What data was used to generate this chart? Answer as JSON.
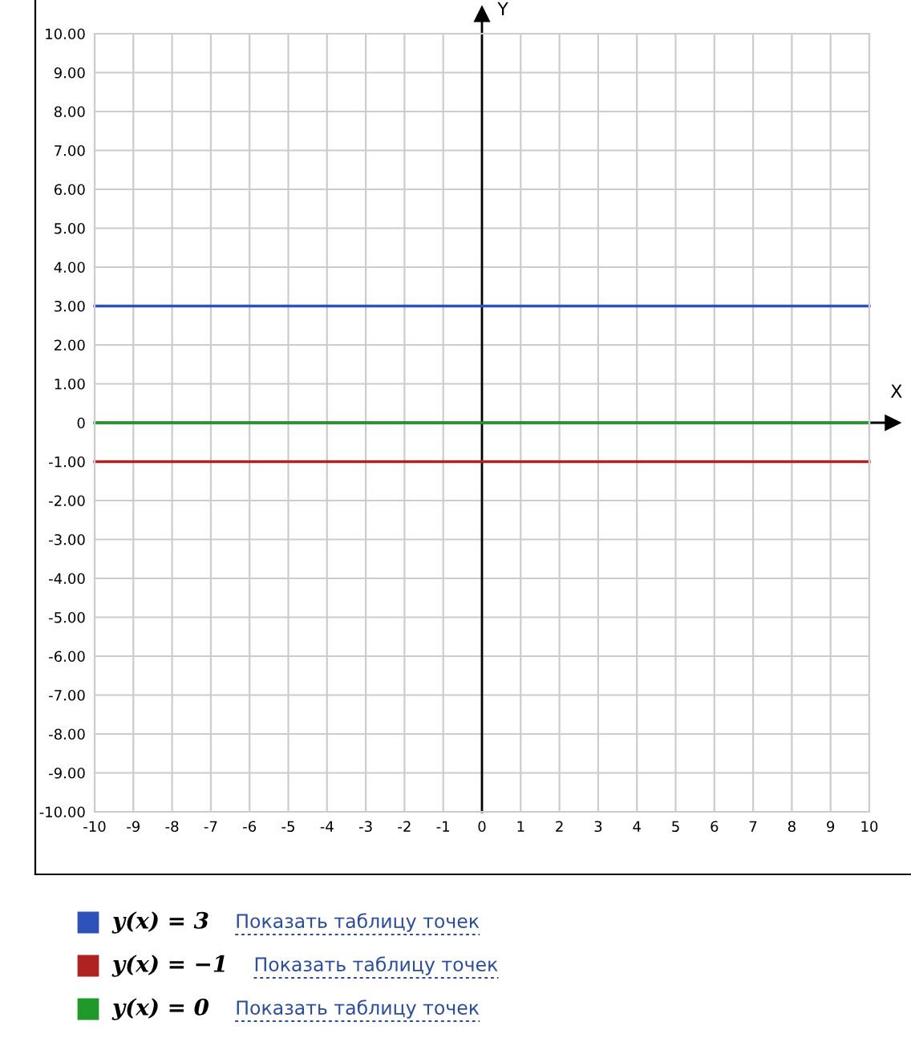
{
  "chart_data": {
    "type": "line",
    "xlabel": "X",
    "ylabel": "Y",
    "x": [
      -10,
      10
    ],
    "series": [
      {
        "name": "y(x) = 3",
        "color": "#2f52b8",
        "values": [
          3,
          3
        ]
      },
      {
        "name": "y(x) = −1",
        "color": "#b02222",
        "values": [
          -1,
          -1
        ]
      },
      {
        "name": "y(x) = 0",
        "color": "#1f9a2a",
        "values": [
          0,
          0
        ]
      }
    ],
    "xlim": [
      -10,
      10
    ],
    "ylim": [
      -10,
      10
    ],
    "xticks": [
      -10,
      -9,
      -8,
      -7,
      -6,
      -5,
      -4,
      -3,
      -2,
      -1,
      0,
      1,
      2,
      3,
      4,
      5,
      6,
      7,
      8,
      9,
      10
    ],
    "yticks": [
      {
        "value": 10,
        "label": "10.00"
      },
      {
        "value": 9,
        "label": "9.00"
      },
      {
        "value": 8,
        "label": "8.00"
      },
      {
        "value": 7,
        "label": "7.00"
      },
      {
        "value": 6,
        "label": "6.00"
      },
      {
        "value": 5,
        "label": "5.00"
      },
      {
        "value": 4,
        "label": "4.00"
      },
      {
        "value": 3,
        "label": "3.00"
      },
      {
        "value": 2,
        "label": "2.00"
      },
      {
        "value": 1,
        "label": "1.00"
      },
      0,
      {
        "value": -1,
        "label": "-1.00"
      },
      {
        "value": -2,
        "label": "-2.00"
      },
      {
        "value": -3,
        "label": "-3.00"
      },
      {
        "value": -4,
        "label": "-4.00"
      },
      {
        "value": -5,
        "label": "-5.00"
      },
      {
        "value": -6,
        "label": "-6.00"
      },
      {
        "value": -7,
        "label": "-7.00"
      },
      {
        "value": -8,
        "label": "-8.00"
      },
      {
        "value": -9,
        "label": "-9.00"
      },
      {
        "value": -10,
        "label": "-10.00"
      }
    ],
    "grid": true,
    "legend": "bottom",
    "annotations": [
      "Показать таблицу точек",
      "Показать таблицу точек",
      "Показать таблицу точек"
    ]
  }
}
